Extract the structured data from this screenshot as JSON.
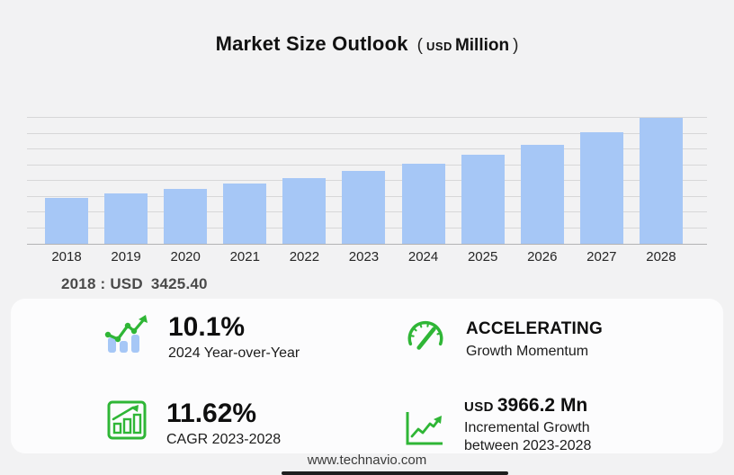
{
  "header": {
    "title": "Market Size Outlook",
    "unit_open": "(",
    "unit_currency": "USD",
    "unit_word": "Million",
    "unit_close": ")"
  },
  "chart_data": {
    "type": "bar",
    "title": "Market Size Outlook (USD Million)",
    "unit": "USD Million",
    "categories": [
      "2018",
      "2019",
      "2020",
      "2021",
      "2022",
      "2023",
      "2024",
      "2025",
      "2026",
      "2027",
      "2028"
    ],
    "values": [
      3425.4,
      3727,
      4070,
      4460,
      4906,
      5412,
      5959,
      6603,
      7368,
      8282,
      9379
    ],
    "values_estimated_beyond_2018": true,
    "annotations": [
      "2018 : USD  3425.40"
    ],
    "xlabel": "",
    "ylabel": "",
    "ylim": [
      0,
      9379
    ],
    "grid": true,
    "gridline_count": 9,
    "legend": false,
    "bar_color": "#a6c7f6"
  },
  "callout": {
    "label": "2018 : USD",
    "value": "3425.40"
  },
  "stats": [
    {
      "icon": "bar-chart-trend-icon",
      "value": "10.1%",
      "label_lines": [
        "2024 Year-over-Year"
      ]
    },
    {
      "icon": "speedometer-icon",
      "value": "ACCELERATING",
      "label_lines": [
        "Growth Momentum"
      ]
    },
    {
      "icon": "chart-growth-box-icon",
      "value": "11.62%",
      "label_lines": [
        "CAGR 2023-2028"
      ]
    },
    {
      "icon": "axis-trend-arrow-icon",
      "value_prefix": "USD",
      "value": "3966.2 Mn",
      "label_lines": [
        "Incremental Growth",
        "between 2023-2028"
      ]
    }
  ],
  "footer": {
    "website": "www.technavio.com"
  },
  "colors": {
    "background": "#f2f2f3",
    "panel": "#fcfcfd",
    "bar_fill": "#a6c7f6",
    "gridline": "#d7d7d8",
    "axis": "#b3b3b4",
    "accent_green": "#2fb636",
    "text_primary": "#111111",
    "bottom_bar": "#1f1f1f"
  }
}
